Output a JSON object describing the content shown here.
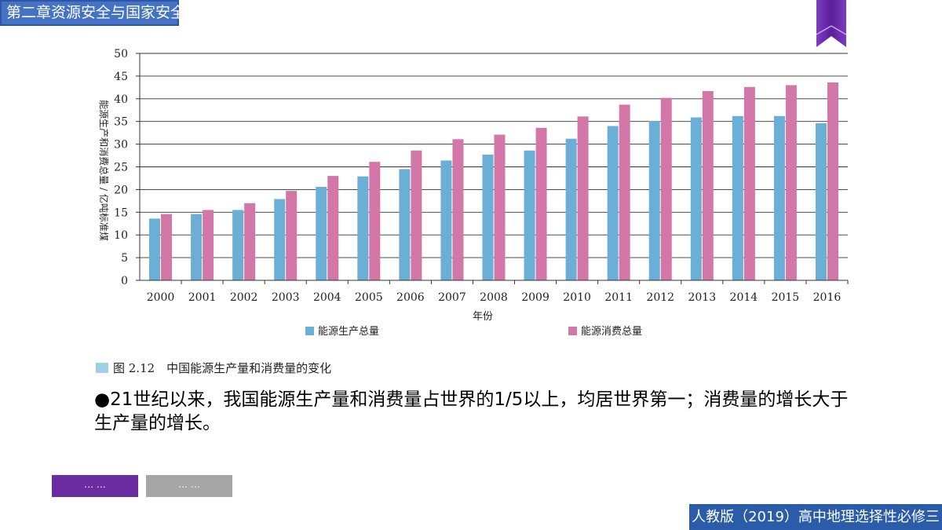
{
  "header": {
    "chapter_title": "第二章资源安全与国家安全"
  },
  "chart_data": {
    "type": "bar",
    "title": "",
    "xlabel": "年份",
    "ylabel": "能源生产和消费总量 / 亿吨标准煤",
    "ylim": [
      0,
      50
    ],
    "yticks": [
      0,
      5,
      10,
      15,
      20,
      25,
      30,
      35,
      40,
      45,
      50
    ],
    "grid": true,
    "legend_position": "bottom",
    "categories": [
      "2000",
      "2001",
      "2002",
      "2003",
      "2004",
      "2005",
      "2006",
      "2007",
      "2008",
      "2009",
      "2010",
      "2011",
      "2012",
      "2013",
      "2014",
      "2015",
      "2016"
    ],
    "series": [
      {
        "name": "能源生产总量",
        "color": "#6baed6",
        "values": [
          13.6,
          14.6,
          15.5,
          17.9,
          20.6,
          22.9,
          24.5,
          26.4,
          27.7,
          28.6,
          31.2,
          34.0,
          35.1,
          35.9,
          36.2,
          36.2,
          34.6
        ]
      },
      {
        "name": "能源消费总量",
        "color": "#d277a7",
        "values": [
          14.6,
          15.5,
          17.0,
          19.7,
          23.0,
          26.1,
          28.6,
          31.1,
          32.1,
          33.6,
          36.1,
          38.7,
          40.2,
          41.7,
          42.6,
          43.0,
          43.6
        ]
      }
    ]
  },
  "figure": {
    "caption": "图 2.12　中国能源生产量和消费量的变化"
  },
  "body": {
    "bullet_text": "●21世纪以来，我国能源生产量和消费量占世界的1/5以上，均居世界第一；消费量的增长大于生产量的增长。"
  },
  "buttons": {
    "primary_label": "… …",
    "secondary_label": "… …"
  },
  "footer": {
    "textbook": "人教版（2019）高中地理选择性必修三"
  },
  "colors": {
    "header_blue": "#4472c4",
    "footer_blue": "#2a5caa",
    "accent_purple": "#6a2ca0",
    "gray": "#a6a6a6"
  }
}
